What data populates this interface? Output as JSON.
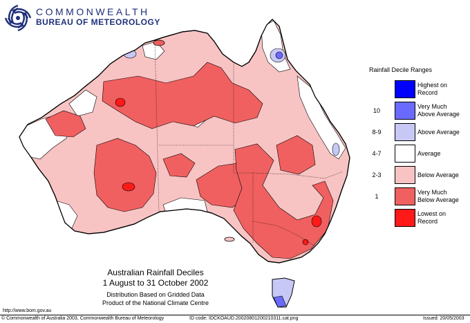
{
  "header": {
    "org_line1": "COMMONWEALTH",
    "org_line2": "BUREAU OF METEOROLOGY"
  },
  "map": {
    "title": "Australian Rainfall Deciles",
    "period": "1 August to 31 October 2002",
    "note1": "Distribution Based on Gridded Data",
    "note2": "Product of the National Climate Centre"
  },
  "legend": {
    "title": "Rainfall Decile Ranges",
    "items": [
      {
        "label_1": "Highest on",
        "label_2": "Record",
        "range": "",
        "color": "#0000ff"
      },
      {
        "label_1": "Very Much",
        "label_2": "Above Average",
        "range": "10",
        "color": "#6a6aff"
      },
      {
        "label_1": "Above Average",
        "label_2": "",
        "range": "8-9",
        "color": "#c8c8f6"
      },
      {
        "label_1": "Average",
        "label_2": "",
        "range": "4-7",
        "color": "#ffffff"
      },
      {
        "label_1": "Below Average",
        "label_2": "",
        "range": "2-3",
        "color": "#f8c3c3"
      },
      {
        "label_1": "Very Much",
        "label_2": "Below Average",
        "range": "1",
        "color": "#f06060"
      },
      {
        "label_1": "Lowest on",
        "label_2": "Record",
        "range": "",
        "color": "#ff1a1a"
      }
    ]
  },
  "footer": {
    "url": "http://www.bom.gov.au",
    "copyright": "© Commonwealth of Australia 2003, Commonwealth Bureau of Meteorology",
    "id_code": "ID code: IDCKOAUD.20020801200210311.cat.png",
    "issued": "Issued: 20/05/2003"
  },
  "colors": {
    "below": "#f8c3c3",
    "very_much_below": "#f06060",
    "lowest": "#ff1a1a",
    "above": "#c8c8f6",
    "very_much_above": "#6a6aff",
    "logo_blue": "#1f2f7a"
  }
}
